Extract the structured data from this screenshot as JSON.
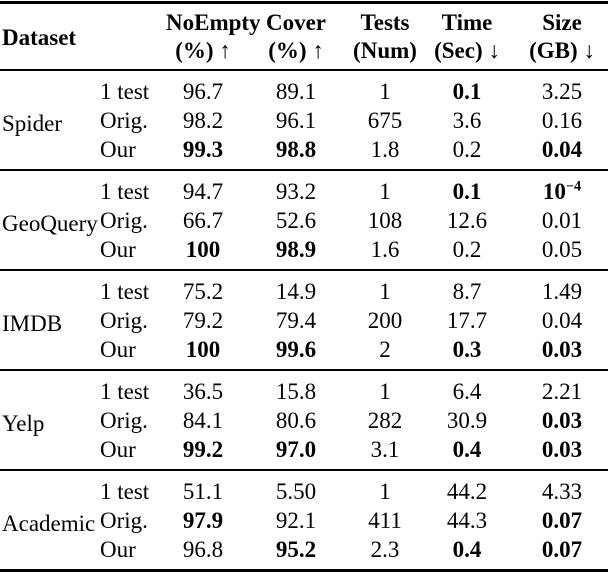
{
  "colors": {
    "text": "#000000",
    "background": "#ffffff",
    "rule": "#000000"
  },
  "table": {
    "columns": [
      {
        "label": "Dataset",
        "sub": ""
      },
      {
        "label": "NoEmpty",
        "sub": "(%) ↑"
      },
      {
        "label": "Cover",
        "sub": "(%) ↑"
      },
      {
        "label": "Tests",
        "sub": "(Num)"
      },
      {
        "label": "Time",
        "sub": "(Sec) ↓"
      },
      {
        "label": "Size",
        "sub": "(GB) ↓"
      }
    ],
    "groups": [
      {
        "dataset": "Spider",
        "rows": [
          {
            "variant": "1 test",
            "cells": [
              {
                "v": "96.7"
              },
              {
                "v": "89.1"
              },
              {
                "v": "1"
              },
              {
                "v": "0.1",
                "bold": true
              },
              {
                "v": "3.25"
              }
            ]
          },
          {
            "variant": "Orig.",
            "cells": [
              {
                "v": "98.2"
              },
              {
                "v": "96.1"
              },
              {
                "v": "675"
              },
              {
                "v": "3.6"
              },
              {
                "v": "0.16"
              }
            ]
          },
          {
            "variant": "Our",
            "cells": [
              {
                "v": "99.3",
                "bold": true
              },
              {
                "v": "98.8",
                "bold": true
              },
              {
                "v": "1.8"
              },
              {
                "v": "0.2"
              },
              {
                "v": "0.04",
                "bold": true
              }
            ]
          }
        ]
      },
      {
        "dataset": "GeoQuery",
        "rows": [
          {
            "variant": "1 test",
            "cells": [
              {
                "v": "94.7"
              },
              {
                "v": "93.2"
              },
              {
                "v": "1"
              },
              {
                "v": "0.1",
                "bold": true
              },
              {
                "v": "10",
                "sup": "−4",
                "bold": true
              }
            ]
          },
          {
            "variant": "Orig.",
            "cells": [
              {
                "v": "66.7"
              },
              {
                "v": "52.6"
              },
              {
                "v": "108"
              },
              {
                "v": "12.6"
              },
              {
                "v": "0.01"
              }
            ]
          },
          {
            "variant": "Our",
            "cells": [
              {
                "v": "100",
                "bold": true
              },
              {
                "v": "98.9",
                "bold": true
              },
              {
                "v": "1.6"
              },
              {
                "v": "0.2"
              },
              {
                "v": "0.05"
              }
            ]
          }
        ]
      },
      {
        "dataset": "IMDB",
        "rows": [
          {
            "variant": "1 test",
            "cells": [
              {
                "v": "75.2"
              },
              {
                "v": "14.9"
              },
              {
                "v": "1"
              },
              {
                "v": "8.7"
              },
              {
                "v": "1.49"
              }
            ]
          },
          {
            "variant": "Orig.",
            "cells": [
              {
                "v": "79.2"
              },
              {
                "v": "79.4"
              },
              {
                "v": "200"
              },
              {
                "v": "17.7"
              },
              {
                "v": "0.04"
              }
            ]
          },
          {
            "variant": "Our",
            "cells": [
              {
                "v": "100",
                "bold": true
              },
              {
                "v": "99.6",
                "bold": true
              },
              {
                "v": "2"
              },
              {
                "v": "0.3",
                "bold": true
              },
              {
                "v": "0.03",
                "bold": true
              }
            ]
          }
        ]
      },
      {
        "dataset": "Yelp",
        "rows": [
          {
            "variant": "1 test",
            "cells": [
              {
                "v": "36.5"
              },
              {
                "v": "15.8"
              },
              {
                "v": "1"
              },
              {
                "v": "6.4"
              },
              {
                "v": "2.21"
              }
            ]
          },
          {
            "variant": "Orig.",
            "cells": [
              {
                "v": "84.1"
              },
              {
                "v": "80.6"
              },
              {
                "v": "282"
              },
              {
                "v": "30.9"
              },
              {
                "v": "0.03",
                "bold": true
              }
            ]
          },
          {
            "variant": "Our",
            "cells": [
              {
                "v": "99.2",
                "bold": true
              },
              {
                "v": "97.0",
                "bold": true
              },
              {
                "v": "3.1"
              },
              {
                "v": "0.4",
                "bold": true
              },
              {
                "v": "0.03",
                "bold": true
              }
            ]
          }
        ]
      },
      {
        "dataset": "Academic",
        "rows": [
          {
            "variant": "1 test",
            "cells": [
              {
                "v": "51.1"
              },
              {
                "v": "5.50"
              },
              {
                "v": "1"
              },
              {
                "v": "44.2"
              },
              {
                "v": "4.33"
              }
            ]
          },
          {
            "variant": "Orig.",
            "cells": [
              {
                "v": "97.9",
                "bold": true
              },
              {
                "v": "92.1"
              },
              {
                "v": "411"
              },
              {
                "v": "44.3"
              },
              {
                "v": "0.07",
                "bold": true
              }
            ]
          },
          {
            "variant": "Our",
            "cells": [
              {
                "v": "96.8"
              },
              {
                "v": "95.2",
                "bold": true
              },
              {
                "v": "2.3"
              },
              {
                "v": "0.4",
                "bold": true
              },
              {
                "v": "0.07",
                "bold": true
              }
            ]
          }
        ]
      }
    ]
  }
}
